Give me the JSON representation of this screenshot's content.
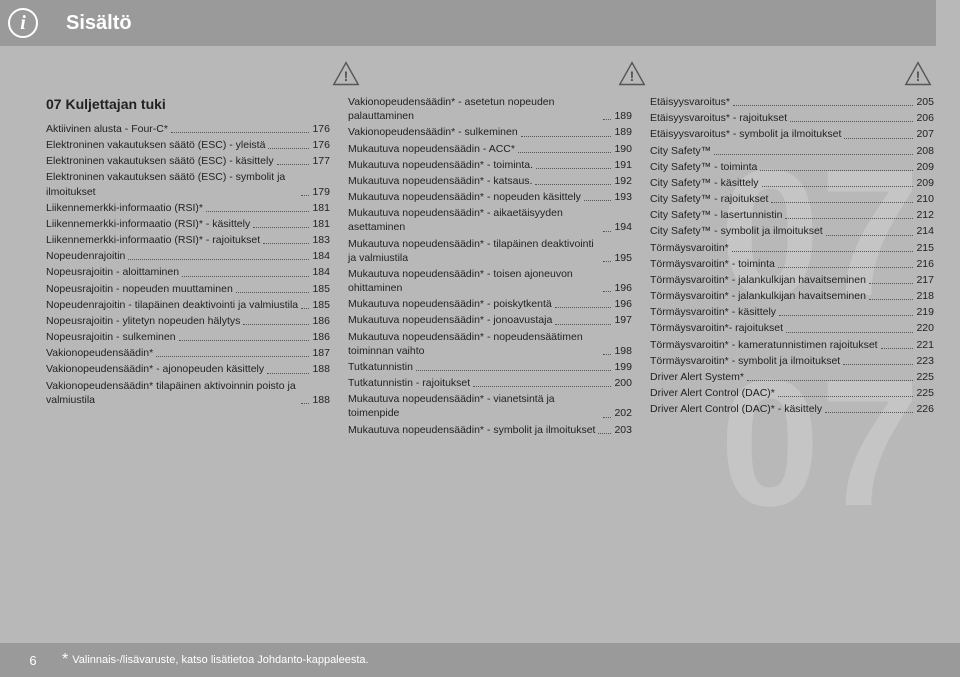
{
  "header": {
    "title": "Sisältö",
    "info_glyph": "i"
  },
  "watermarks": {
    "w1": "07",
    "w2": "07"
  },
  "section": {
    "title": "07 Kuljettajan tuki"
  },
  "col1": [
    {
      "l": "Aktiivinen alusta - Four-C*",
      "p": "176"
    },
    {
      "l": "Elektroninen vakautuksen säätö (ESC) - yleistä",
      "p": "176"
    },
    {
      "l": "Elektroninen vakautuksen säätö (ESC) - käsittely",
      "p": "177"
    },
    {
      "l": "Elektroninen vakautuksen säätö (ESC) - symbolit ja ilmoitukset",
      "p": "179"
    },
    {
      "l": "Liikennemerkki-informaatio (RSI)*",
      "p": "181"
    },
    {
      "l": "Liikennemerkki-informaatio (RSI)* - käsittely",
      "p": "181"
    },
    {
      "l": "Liikennemerkki-informaatio (RSI)* - rajoitukset",
      "p": "183"
    },
    {
      "l": "Nopeudenrajoitin",
      "p": "184"
    },
    {
      "l": "Nopeusrajoitin - aloittaminen",
      "p": "184"
    },
    {
      "l": "Nopeusrajoitin - nopeuden muuttaminen",
      "p": "185"
    },
    {
      "l": "Nopeudenrajoitin - tilapäinen deaktivointi ja valmiustila",
      "p": "185"
    },
    {
      "l": "Nopeusrajoitin - ylitetyn nopeuden hälytys",
      "p": "186"
    },
    {
      "l": "Nopeusrajoitin - sulkeminen",
      "p": "186"
    },
    {
      "l": "Vakionopeudensäädin*",
      "p": "187"
    },
    {
      "l": "Vakionopeudensäädin* - ajonopeuden käsittely",
      "p": "188"
    },
    {
      "l": "Vakionopeudensäädin* tilapäinen aktivoinnin poisto ja valmiustila",
      "p": "188"
    }
  ],
  "col2": [
    {
      "l": "Vakionopeudensäädin* - asetetun nopeuden palauttaminen",
      "p": "189"
    },
    {
      "l": "Vakionopeudensäädin* - sulkeminen",
      "p": "189"
    },
    {
      "l": "Mukautuva nopeudensäädin - ACC*",
      "p": "190"
    },
    {
      "l": "Mukautuva nopeudensäädin* - toiminta.",
      "p": "191"
    },
    {
      "l": "Mukautuva nopeudensäädin* - katsaus.",
      "p": "192"
    },
    {
      "l": "Mukautuva nopeudensäädin* - nopeuden käsittely",
      "p": "193"
    },
    {
      "l": "Mukautuva nopeudensäädin* - aikaetäisyyden asettaminen",
      "p": "194"
    },
    {
      "l": "Mukautuva nopeudensäädin* - tilapäinen deaktivointi ja valmiustila",
      "p": "195"
    },
    {
      "l": "Mukautuva nopeudensäädin* - toisen ajoneuvon ohittaminen",
      "p": "196"
    },
    {
      "l": "Mukautuva nopeudensäädin* - poiskytkentä",
      "p": "196"
    },
    {
      "l": "Mukautuva nopeudensäädin* - jonoavustaja",
      "p": "197"
    },
    {
      "l": "Mukautuva nopeudensäädin* - nopeudensäätimen toiminnan vaihto",
      "p": "198"
    },
    {
      "l": "Tutkatunnistin",
      "p": "199"
    },
    {
      "l": "Tutkatunnistin - rajoitukset",
      "p": "200"
    },
    {
      "l": "Mukautuva nopeudensäädin* - vianetsintä ja toimenpide",
      "p": "202"
    },
    {
      "l": "Mukautuva nopeudensäädin* - symbolit ja ilmoitukset",
      "p": "203"
    }
  ],
  "col3": [
    {
      "l": "Etäisyysvaroitus*",
      "p": "205"
    },
    {
      "l": "Etäisyysvaroitus* - rajoitukset",
      "p": "206"
    },
    {
      "l": "Etäisyysvaroitus* - symbolit ja ilmoitukset",
      "p": "207"
    },
    {
      "l": "City Safety™",
      "p": "208"
    },
    {
      "l": "City Safety™ - toiminta",
      "p": "209"
    },
    {
      "l": "City Safety™ - käsittely",
      "p": "209"
    },
    {
      "l": "City Safety™ - rajoitukset",
      "p": "210"
    },
    {
      "l": "City Safety™ - lasertunnistin",
      "p": "212"
    },
    {
      "l": "City Safety™ - symbolit ja ilmoitukset",
      "p": "214"
    },
    {
      "l": "Törmäysvaroitin*",
      "p": "215"
    },
    {
      "l": "Törmäysvaroitin* - toiminta",
      "p": "216"
    },
    {
      "l": "Törmäysvaroitin* - jalankulkijan havaitseminen",
      "p": "217"
    },
    {
      "l": "Törmäysvaroitin* - jalankulkijan havaitseminen",
      "p": "218"
    },
    {
      "l": "Törmäysvaroitin* - käsittely",
      "p": "219"
    },
    {
      "l": "Törmäysvaroitin*- rajoitukset",
      "p": "220"
    },
    {
      "l": "Törmäysvaroitin* - kameratunnistimen rajoitukset",
      "p": "221"
    },
    {
      "l": "Törmäysvaroitin* - symbolit ja ilmoitukset",
      "p": "223"
    },
    {
      "l": "Driver Alert System*",
      "p": "225"
    },
    {
      "l": "Driver Alert Control (DAC)*",
      "p": "225"
    },
    {
      "l": "Driver Alert Control (DAC)* - käsittely",
      "p": "226"
    }
  ],
  "footer": {
    "page_number": "6",
    "note": "Valinnais-/lisävaruste, katso lisätietoa Johdanto-kappaleesta."
  },
  "colors": {
    "page_bg": "#b8b8b8",
    "bar_bg": "#9a9a9a",
    "text_light": "#ffffff",
    "text_dark": "#222222"
  }
}
